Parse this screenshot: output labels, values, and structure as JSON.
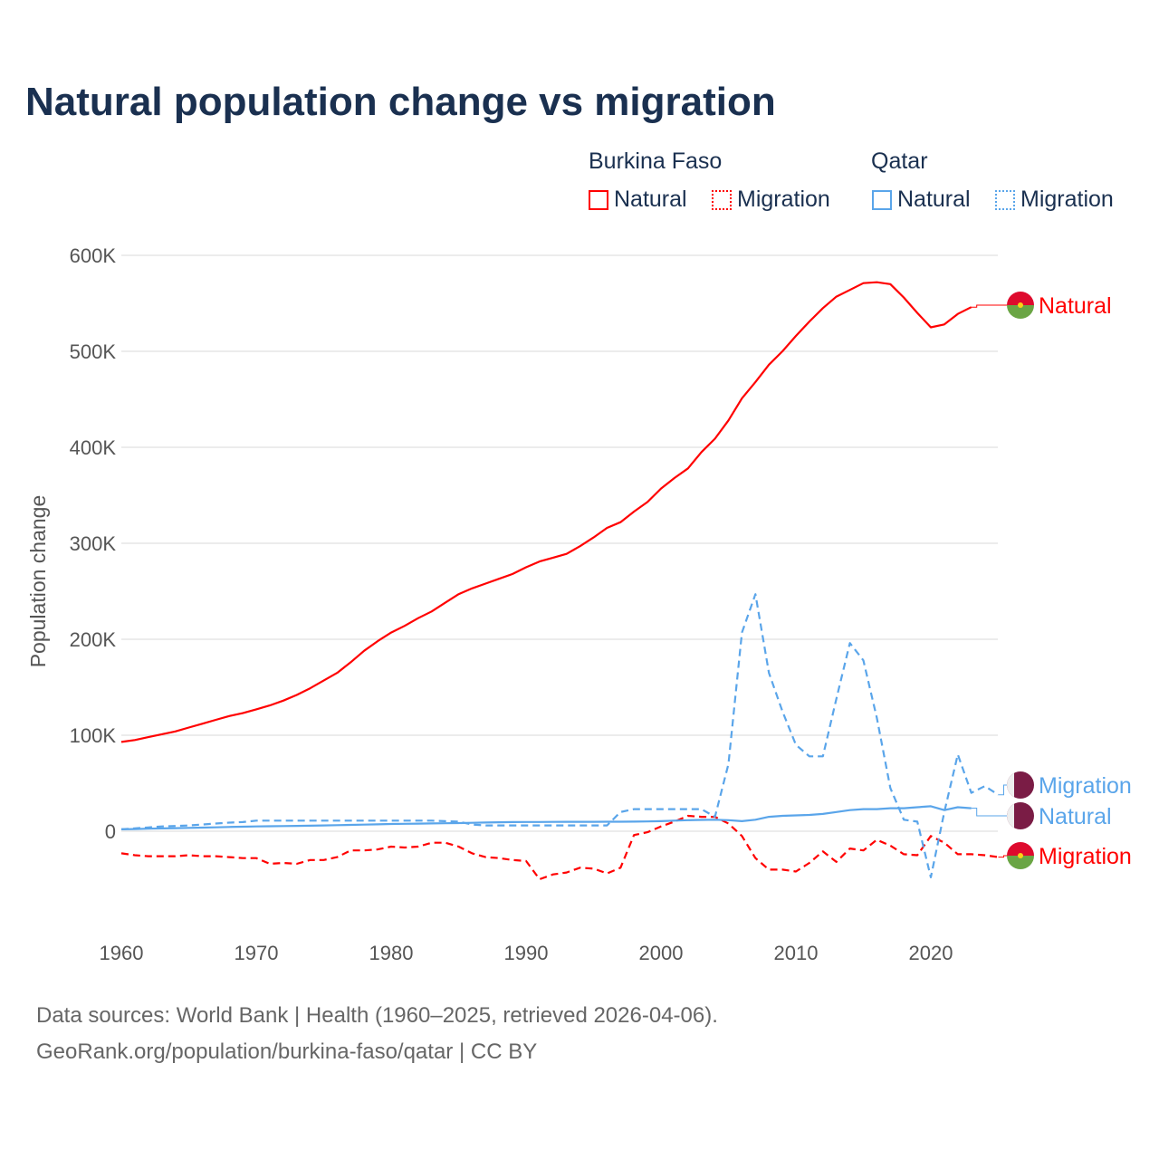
{
  "chart_data": {
    "type": "line",
    "title": "Natural population change vs migration",
    "ylabel": "Population change",
    "xlabel": "",
    "ylim": [
      -100000,
      600000
    ],
    "xlim": [
      1960,
      2025
    ],
    "y_ticks": [
      {
        "v": 0,
        "label": "0"
      },
      {
        "v": 100000,
        "label": "100K"
      },
      {
        "v": 200000,
        "label": "200K"
      },
      {
        "v": 300000,
        "label": "300K"
      },
      {
        "v": 400000,
        "label": "400K"
      },
      {
        "v": 500000,
        "label": "500K"
      },
      {
        "v": 600000,
        "label": "600K"
      }
    ],
    "x_ticks": [
      {
        "v": 1960,
        "label": "1960"
      },
      {
        "v": 1970,
        "label": "1970"
      },
      {
        "v": 1980,
        "label": "1980"
      },
      {
        "v": 1990,
        "label": "1990"
      },
      {
        "v": 2000,
        "label": "2000"
      },
      {
        "v": 2010,
        "label": "2010"
      },
      {
        "v": 2020,
        "label": "2020"
      }
    ],
    "legend": {
      "groups": [
        {
          "country": "Burkina Faso",
          "items": [
            {
              "label": "Natural",
              "style": "solid"
            },
            {
              "label": "Migration",
              "style": "dotted"
            }
          ],
          "color": "#ff0000"
        },
        {
          "country": "Qatar",
          "items": [
            {
              "label": "Natural",
              "style": "solid"
            },
            {
              "label": "Migration",
              "style": "dotted"
            }
          ],
          "color": "#5aa5ea"
        }
      ],
      "placement": "top-right"
    },
    "series": [
      {
        "name": "Burkina Faso Natural",
        "end_label": "Natural",
        "color": "#ff0000",
        "dash": false,
        "flag": "bf",
        "start": 1960,
        "values": [
          93000,
          95000,
          98000,
          101000,
          104000,
          108000,
          112000,
          116000,
          120000,
          123000,
          127000,
          131000,
          136000,
          142000,
          149000,
          157000,
          165000,
          176000,
          188000,
          198000,
          207000,
          214000,
          222000,
          229000,
          238000,
          247000,
          253000,
          258000,
          263000,
          268000,
          275000,
          281000,
          285000,
          289000,
          297000,
          306000,
          316000,
          322000,
          333000,
          343000,
          357000,
          368000,
          378000,
          395000,
          409000,
          428000,
          451000,
          468000,
          486000,
          500000,
          516000,
          531000,
          545000,
          557000,
          564000,
          571000,
          572000,
          570000,
          556000,
          540000,
          525000,
          528000,
          539000,
          546000
        ]
      },
      {
        "name": "Burkina Faso Migration",
        "end_label": "Migration",
        "color": "#ff0000",
        "dash": true,
        "flag": "bf",
        "start": 1960,
        "values": [
          -23000,
          -25000,
          -26000,
          -26000,
          -26000,
          -25000,
          -26000,
          -26000,
          -27000,
          -28000,
          -28000,
          -34000,
          -33000,
          -34000,
          -30000,
          -30000,
          -27000,
          -20000,
          -20000,
          -19000,
          -16000,
          -17000,
          -16000,
          -12000,
          -12000,
          -16000,
          -23000,
          -27000,
          -28000,
          -30000,
          -31000,
          -50000,
          -45000,
          -43000,
          -38000,
          -39000,
          -44000,
          -38000,
          -4000,
          -1000,
          5000,
          10000,
          16000,
          15000,
          15000,
          8000,
          -5000,
          -28000,
          -40000,
          -40000,
          -42000,
          -33000,
          -21000,
          -32000,
          -18000,
          -20000,
          -9000,
          -15000,
          -24000,
          -25000,
          -5000,
          -12000,
          -24000,
          -24000,
          -25000,
          -27000
        ]
      },
      {
        "name": "Qatar Natural",
        "end_label": "Natural",
        "color": "#5aa5ea",
        "dash": false,
        "flag": "qa",
        "start": 1960,
        "values": [
          2000,
          2300,
          2600,
          2900,
          3200,
          3500,
          3800,
          4100,
          4400,
          4700,
          5000,
          5200,
          5400,
          5600,
          5800,
          6000,
          6300,
          6600,
          6900,
          7200,
          7500,
          7700,
          7900,
          8100,
          8300,
          8500,
          8800,
          9100,
          9300,
          9500,
          9600,
          9600,
          9700,
          9800,
          9800,
          9800,
          9900,
          9900,
          10000,
          10200,
          10500,
          11000,
          11500,
          11800,
          12000,
          11500,
          10500,
          12000,
          15000,
          16000,
          16500,
          17000,
          18000,
          20000,
          22000,
          23000,
          23000,
          24000,
          24000,
          25000,
          26000,
          22000,
          25000,
          24000
        ]
      },
      {
        "name": "Qatar Migration",
        "end_label": "Migration",
        "color": "#5aa5ea",
        "dash": true,
        "flag": "qa",
        "start": 1960,
        "values": [
          2000,
          3000,
          4000,
          5000,
          5500,
          6000,
          7000,
          8000,
          9000,
          9500,
          11000,
          11000,
          11000,
          11000,
          11000,
          11000,
          11000,
          11000,
          11000,
          11000,
          11000,
          11000,
          11000,
          11000,
          10500,
          10000,
          7000,
          6000,
          6000,
          6000,
          6000,
          6000,
          6000,
          6000,
          6000,
          6000,
          6000,
          20000,
          23000,
          23000,
          23000,
          23000,
          23000,
          23000,
          15000,
          70000,
          207000,
          247000,
          165000,
          125000,
          90000,
          78000,
          78000,
          138000,
          196000,
          178000,
          118000,
          45000,
          12000,
          10000,
          -48000,
          20000,
          80000,
          40000,
          47000,
          38000
        ]
      }
    ]
  },
  "sources": {
    "line1": "Data sources: World Bank | Health (1960–2025, retrieved 2026-04-06).",
    "line2": "GeoRank.org/population/burkina-faso/qatar | CC BY"
  },
  "colors": {
    "bf": "#ff0000",
    "qa": "#5aa5ea",
    "title": "#1a3050"
  }
}
